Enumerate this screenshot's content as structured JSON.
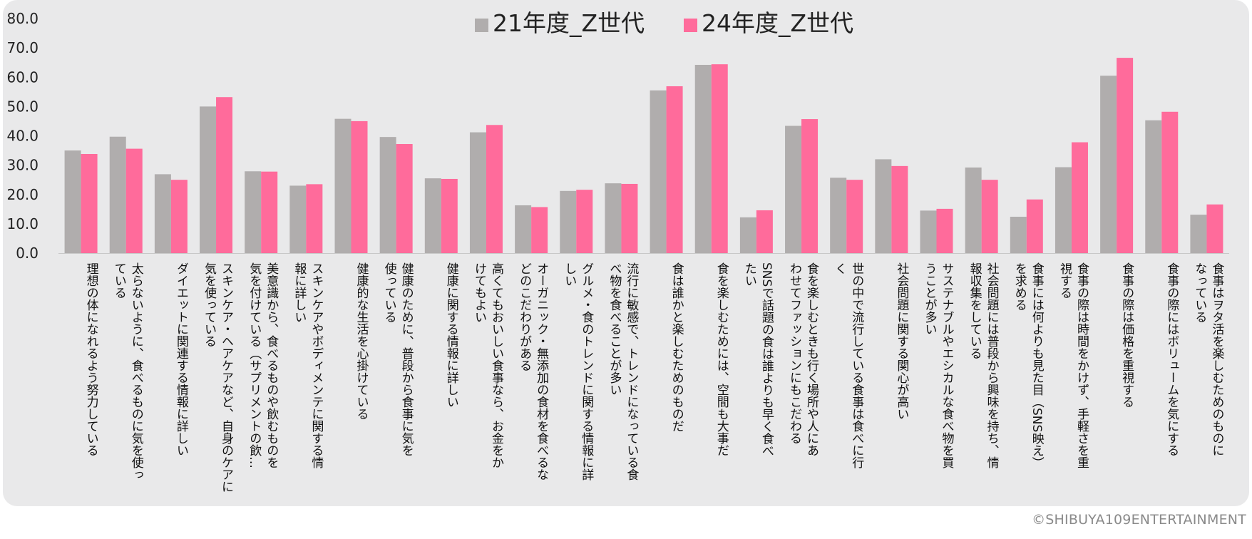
{
  "copyright": "©SHIBUYA109ENTERTAINMENT",
  "colors": {
    "series_21": "#b0adad",
    "series_24": "#ff6b9b",
    "panel": "#e9e9ea"
  },
  "chart_data": {
    "type": "bar",
    "title": "",
    "xlabel": "",
    "ylabel": "",
    "ylim": [
      0,
      80
    ],
    "y_ticks": [
      "0.0",
      "10.0",
      "20.0",
      "30.0",
      "40.0",
      "50.0",
      "60.0",
      "70.0",
      "80.0"
    ],
    "legend_position": "top-center",
    "grid": false,
    "categories": [
      [
        "理想の体になれるよう努力している"
      ],
      [
        "太らないように、食べるものに気を使っ",
        "ている"
      ],
      [
        "ダイエットに関連する情報に詳しい"
      ],
      [
        "スキンケア・ヘアケアなど、自身のケアに",
        "気を使っている"
      ],
      [
        "美意識から、食べるものや飲むものを",
        "気を付けている（サプリメントの飲…"
      ],
      [
        "スキンケアやボディメンテに関する情",
        "報に詳しい"
      ],
      [
        "健康的な生活を心掛けている"
      ],
      [
        "健康のために、普段から食事に気を",
        "使っている"
      ],
      [
        "健康に関する情報に詳しい"
      ],
      [
        "高くてもおいしい食事なら、お金をか",
        "けてもよい"
      ],
      [
        "オーガニック・無添加の食材を食べるな",
        "どのこだわりがある"
      ],
      [
        "グルメ・食のトレンドに関する情報に詳",
        "しい"
      ],
      [
        "流行に敏感で、トレンドになっている食",
        "べ物を食べることが多い"
      ],
      [
        "食は誰かと楽しむためのものだ"
      ],
      [
        "食を楽しむためには、空間も大事だ"
      ],
      [
        "SNSで話題の食は誰よりも早く食べ",
        "たい"
      ],
      [
        "食を楽しむときも行く場所や人にあ",
        "わせてファッションにもこだわる"
      ],
      [
        "世の中で流行している食事は食べに行",
        "く"
      ],
      [
        "社会問題に関する関心が高い"
      ],
      [
        "サステナブルやエシカルな食べ物を買",
        "うことが多い"
      ],
      [
        "社会問題には普段から興味を持ち、情",
        "報収集をしている"
      ],
      [
        "食事には何よりも見た目（SNS映え）",
        "を求める"
      ],
      [
        "食事の際は時間をかけず、手軽さを重",
        "視する"
      ],
      [
        "食事の際は価格を重視する"
      ],
      [
        "食事の際にはボリュームを気にする"
      ],
      [
        "食事はヲタ活を楽しむためのものに",
        "なっている"
      ]
    ],
    "series": [
      {
        "name": "21年度_Z世代",
        "values": [
          35.0,
          39.7,
          26.9,
          50.0,
          27.9,
          23.0,
          45.8,
          39.6,
          25.5,
          41.2,
          16.3,
          21.2,
          23.8,
          55.5,
          64.2,
          12.2,
          43.4,
          25.7,
          32.0,
          14.5,
          29.2,
          12.4,
          29.3,
          60.5,
          45.3,
          13.1
        ]
      },
      {
        "name": "24年度_Z世代",
        "values": [
          33.8,
          35.6,
          25.0,
          53.2,
          27.8,
          23.5,
          45.0,
          37.2,
          25.3,
          43.7,
          15.7,
          21.6,
          23.6,
          56.9,
          64.4,
          14.6,
          45.7,
          25.0,
          29.7,
          15.1,
          25.0,
          18.3,
          37.8,
          66.6,
          48.2,
          16.6
        ]
      }
    ]
  }
}
